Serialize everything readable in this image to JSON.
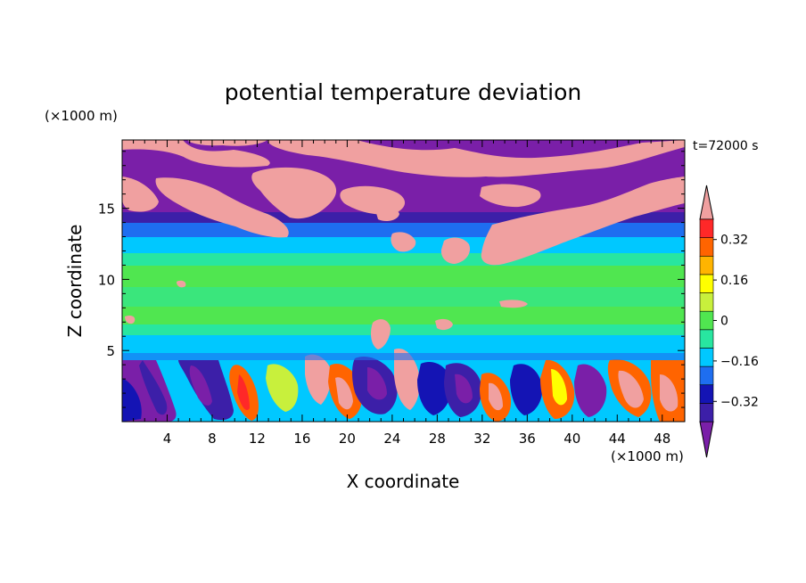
{
  "chart_data": {
    "type": "heatmap",
    "title": "potential temperature deviation",
    "xlabel": "X coordinate",
    "ylabel": "Z coordinate",
    "x_unit": "(×1000 m)",
    "y_unit": "(×1000 m)",
    "time_label": "t=72000 s",
    "xlim": [
      0,
      50
    ],
    "ylim": [
      0,
      19.8
    ],
    "x_ticks": [
      4,
      8,
      12,
      16,
      20,
      24,
      28,
      32,
      36,
      40,
      44,
      48
    ],
    "y_ticks": [
      5,
      10,
      15
    ],
    "colorbar": {
      "levels": [
        -0.4,
        -0.32,
        -0.24,
        -0.16,
        -0.08,
        0,
        0.08,
        0.16,
        0.24,
        0.32,
        0.4
      ],
      "colors": [
        "#7a1fa8",
        "#3c1fa8",
        "#1414b4",
        "#1e6ef0",
        "#00c8ff",
        "#28e6a0",
        "#50e650",
        "#c8f03c",
        "#ffff00",
        "#ffb400",
        "#ff6400",
        "#ff2828",
        "#f0a0a0"
      ],
      "tick_labels": [
        "0.32",
        "0.16",
        "0",
        "−0.16",
        "−0.32"
      ],
      "tick_values": [
        0.32,
        0.16,
        0,
        -0.16,
        -0.32
      ],
      "extend": "both"
    },
    "layers": [
      {
        "z_range": [
          17.5,
          19.8
        ],
        "dominant": "< -0.4 (purple)",
        "features": "positive anomalies > 0.4 (pink) at x≈4-10 and x≈22-34"
      },
      {
        "z_range": [
          12.5,
          17.5
        ],
        "dominant": "< -0.4 (purple)",
        "features": "pink > 0.4 patches at x≈0-2, x≈10-18, x≈28-40, x≈42-50"
      },
      {
        "z_range": [
          10.5,
          12.5
        ],
        "dominant": "-0.16 to -0.08 (cyan) / 0 to 0.08"
      },
      {
        "z_range": [
          6.5,
          10.5
        ],
        "dominant": "0.08 to 0.16 (green)"
      },
      {
        "z_range": [
          4.5,
          6.5
        ],
        "dominant": "-0.08 to 0 (cyan) / 0 to 0.08"
      },
      {
        "z_range": [
          0,
          4.5
        ],
        "dominant": "mixed: < -0.32 (blue/purple) and > 0.32 (red/pink) convective cells"
      }
    ]
  }
}
